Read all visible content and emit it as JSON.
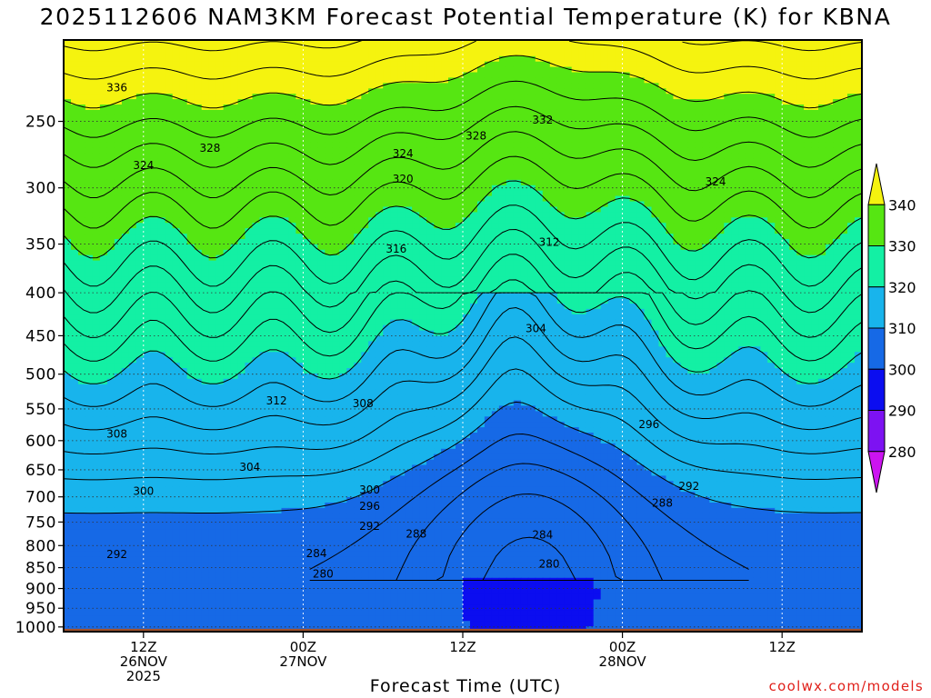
{
  "title": "2025112606 NAM3KM Forecast Potential Temperature (K) for KBNA",
  "credit": "coolwx.com/models",
  "chart_data": {
    "type": "heatmap",
    "title": "2025112606 NAM3KM Forecast Potential Temperature (K) for KBNA",
    "xlabel": "Forecast Time (UTC)",
    "ylabel": "",
    "x_ticks": [
      {
        "hours_since_init": 6,
        "lines": [
          "12Z",
          "26NOV",
          "2025"
        ]
      },
      {
        "hours_since_init": 18,
        "lines": [
          "00Z",
          "27NOV"
        ]
      },
      {
        "hours_since_init": 30,
        "lines": [
          "12Z"
        ]
      },
      {
        "hours_since_init": 42,
        "lines": [
          "00Z",
          "28NOV"
        ]
      },
      {
        "hours_since_init": 54,
        "lines": [
          "12Z"
        ]
      }
    ],
    "x_range_hours": [
      0,
      60
    ],
    "y_axis": "pressure (hPa), inverted",
    "y_ticks": [
      250,
      300,
      350,
      400,
      450,
      500,
      550,
      600,
      650,
      700,
      750,
      800,
      850,
      900,
      950,
      1000
    ],
    "y_range": [
      1013,
      200
    ],
    "grid": "dotted",
    "colorbar": {
      "position": "right",
      "levels": [
        280,
        290,
        300,
        310,
        320,
        330,
        340
      ],
      "bands": [
        {
          "range": "<280",
          "color": "#cc14f0"
        },
        {
          "range": "280-290",
          "color": "#7d12f2"
        },
        {
          "range": "290-300",
          "color": "#0b0df0"
        },
        {
          "range": "300-310",
          "color": "#1669e6"
        },
        {
          "range": "310-320",
          "color": "#18b4ec"
        },
        {
          "range": "320-330",
          "color": "#13f0a4"
        },
        {
          "range": "330-340",
          "color": "#56e612"
        },
        {
          "range": ">340",
          "color": "#f5f30f"
        }
      ]
    },
    "contour_interval": 2,
    "contour_labels": [
      {
        "value": 336,
        "hour": 4.0,
        "pressure": 228
      },
      {
        "value": 328,
        "hour": 11.0,
        "pressure": 269
      },
      {
        "value": 324,
        "hour": 6.0,
        "pressure": 282
      },
      {
        "value": 324,
        "hour": 25.5,
        "pressure": 273
      },
      {
        "value": 320,
        "hour": 25.5,
        "pressure": 293
      },
      {
        "value": 328,
        "hour": 31.0,
        "pressure": 260
      },
      {
        "value": 332,
        "hour": 36.0,
        "pressure": 249
      },
      {
        "value": 324,
        "hour": 49.0,
        "pressure": 295
      },
      {
        "value": 316,
        "hour": 25.0,
        "pressure": 355
      },
      {
        "value": 312,
        "hour": 36.5,
        "pressure": 348
      },
      {
        "value": 304,
        "hour": 35.5,
        "pressure": 441
      },
      {
        "value": 312,
        "hour": 16.0,
        "pressure": 538
      },
      {
        "value": 308,
        "hour": 22.5,
        "pressure": 542
      },
      {
        "value": 296,
        "hour": 44.0,
        "pressure": 574
      },
      {
        "value": 308,
        "hour": 4.0,
        "pressure": 589
      },
      {
        "value": 304,
        "hour": 14.0,
        "pressure": 645
      },
      {
        "value": 292,
        "hour": 47.0,
        "pressure": 680
      },
      {
        "value": 300,
        "hour": 6.0,
        "pressure": 689
      },
      {
        "value": 300,
        "hour": 23.0,
        "pressure": 687
      },
      {
        "value": 296,
        "hour": 23.0,
        "pressure": 718
      },
      {
        "value": 288,
        "hour": 45.0,
        "pressure": 712
      },
      {
        "value": 292,
        "hour": 23.0,
        "pressure": 759
      },
      {
        "value": 288,
        "hour": 26.5,
        "pressure": 775
      },
      {
        "value": 284,
        "hour": 36.0,
        "pressure": 777
      },
      {
        "value": 284,
        "hour": 19.0,
        "pressure": 818
      },
      {
        "value": 280,
        "hour": 36.5,
        "pressure": 841
      },
      {
        "value": 292,
        "hour": 4.0,
        "pressure": 820
      },
      {
        "value": 280,
        "hour": 19.5,
        "pressure": 865
      }
    ]
  }
}
